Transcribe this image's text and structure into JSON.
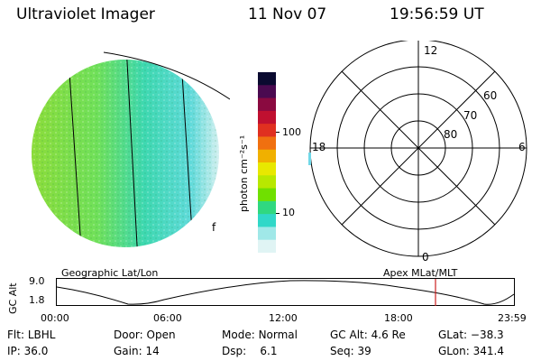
{
  "header": {
    "instrument": "Ultraviolet Imager",
    "date": "11 Nov 07",
    "time": "19:56:59 UT"
  },
  "colorbar": {
    "unit_label": "photon cm⁻²s⁻¹",
    "ticks": [
      "100",
      "10"
    ],
    "colors": [
      "#0a0a30",
      "#4a0a50",
      "#8a0a40",
      "#c01030",
      "#e03020",
      "#f07010",
      "#f0b000",
      "#e8e800",
      "#b8e800",
      "#70e000",
      "#30d880",
      "#30d8c8",
      "#a0e8e8",
      "#e0f4f4"
    ]
  },
  "polar_plot": {
    "mlt_labels": {
      "top": "12",
      "right": "6",
      "bottom": "0",
      "left": "18"
    },
    "lat_labels": [
      "60",
      "70",
      "80"
    ]
  },
  "timeline": {
    "left_title": "Geographic Lat/Lon",
    "right_title": "Apex MLat/MLT",
    "axis_label": "GC Alt",
    "y_ticks": [
      "9.0",
      "1.8"
    ],
    "x_ticks": [
      "00:00",
      "06:00",
      "12:00",
      "18:00",
      "23:59"
    ],
    "current_marker_color": "#cc2020"
  },
  "info": {
    "row1": [
      {
        "key": "Flt:",
        "value": "LBHL"
      },
      {
        "key": "Door:",
        "value": "Open"
      },
      {
        "key": "Mode:",
        "value": "Normal"
      },
      {
        "key": "GC Alt:",
        "value": "4.6 Re"
      },
      {
        "key": "GLat:",
        "value": "−38.3"
      }
    ],
    "row2": [
      {
        "key": "IP:",
        "value": "36.0"
      },
      {
        "key": "Gain:",
        "value": "14"
      },
      {
        "key": "Dsp:",
        "value": "6.1"
      },
      {
        "key": "Seq:",
        "value": "39"
      },
      {
        "key": "GLon:",
        "value": "341.4"
      }
    ]
  }
}
